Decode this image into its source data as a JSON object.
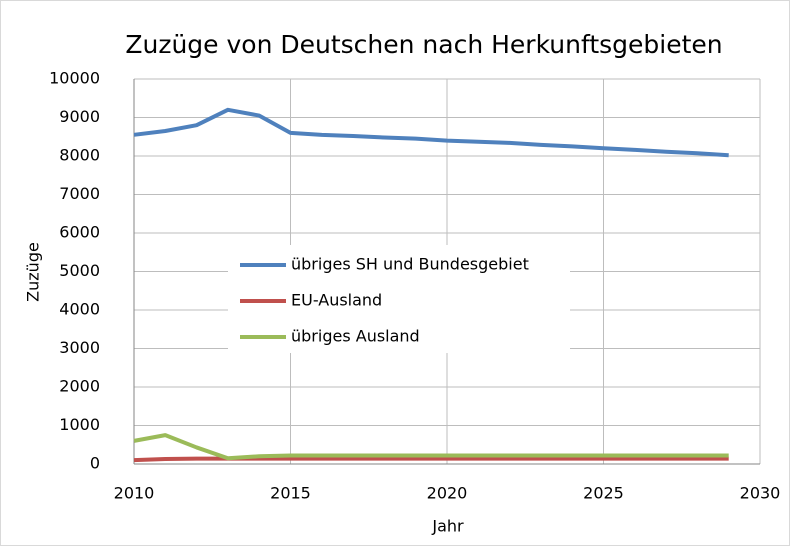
{
  "chart_data": {
    "type": "line",
    "title": "Zuzüge von Deutschen nach Herkunftsgebieten",
    "xlabel": "Jahr",
    "ylabel": "Zuzüge",
    "x": [
      2010,
      2011,
      2012,
      2013,
      2014,
      2015,
      2016,
      2017,
      2018,
      2019,
      2020,
      2021,
      2022,
      2023,
      2024,
      2025,
      2026,
      2027,
      2028,
      2029
    ],
    "series": [
      {
        "name": "übriges SH und Bundesgebiet",
        "color": "#4f81bd",
        "values": [
          8550,
          8650,
          8800,
          9200,
          9050,
          8600,
          8550,
          8520,
          8480,
          8450,
          8400,
          8370,
          8340,
          8290,
          8250,
          8200,
          8160,
          8110,
          8070,
          8020
        ]
      },
      {
        "name": "EU-Ausland",
        "color": "#c0504d",
        "values": [
          100,
          130,
          140,
          140,
          140,
          140,
          140,
          140,
          140,
          140,
          140,
          140,
          140,
          140,
          140,
          140,
          140,
          140,
          140,
          140
        ]
      },
      {
        "name": "übriges Ausland",
        "color": "#9bbb59",
        "values": [
          600,
          750,
          430,
          150,
          200,
          220,
          220,
          220,
          220,
          220,
          220,
          220,
          220,
          220,
          220,
          220,
          220,
          220,
          220,
          220
        ]
      }
    ],
    "xlim": [
      2010,
      2030
    ],
    "xticks": [
      2010,
      2015,
      2020,
      2025,
      2030
    ],
    "ylim": [
      0,
      10000
    ],
    "yticks": [
      0,
      1000,
      2000,
      3000,
      4000,
      5000,
      6000,
      7000,
      8000,
      9000,
      10000
    ],
    "grid": true,
    "legend": "center"
  }
}
